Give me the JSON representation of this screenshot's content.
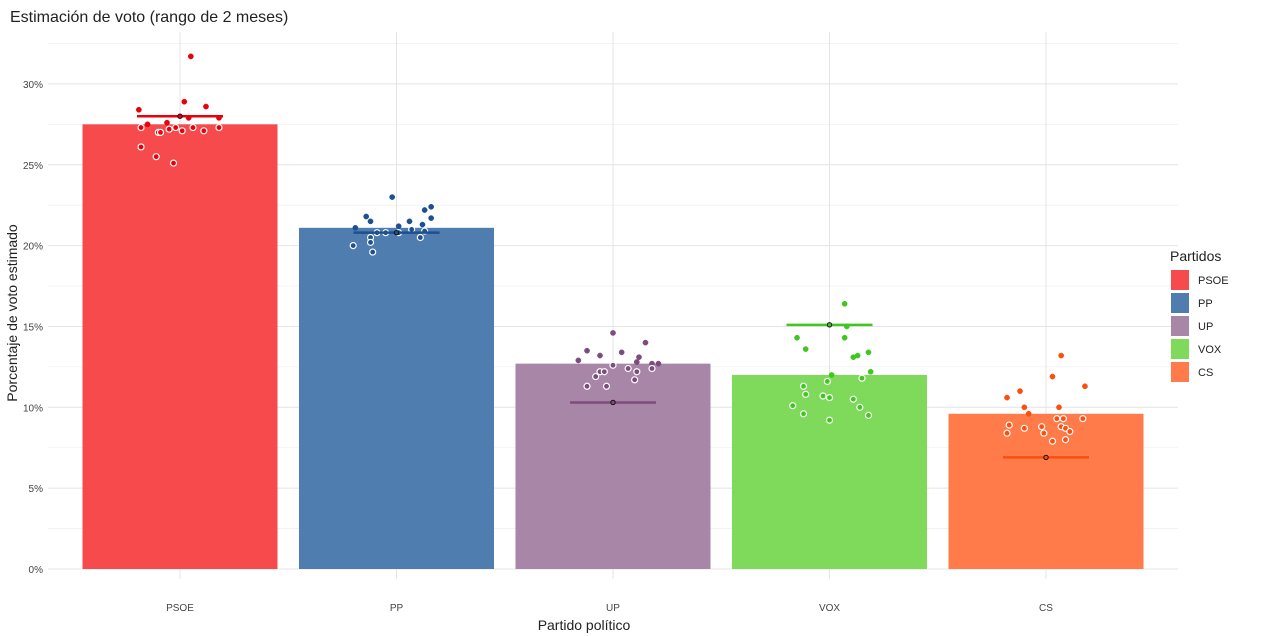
{
  "chart_data": {
    "type": "bar",
    "title": "Estimación de voto (rango de 2 meses)",
    "xlabel": "Partido político",
    "ylabel": "Porcentaje de voto estimado",
    "ylim": [
      0,
      32.5
    ],
    "yticks": [
      0,
      5,
      10,
      15,
      20,
      25,
      30
    ],
    "ytick_labels": [
      "0%",
      "5%",
      "10%",
      "15%",
      "20%",
      "25%",
      "30%"
    ],
    "grid": true,
    "legend": {
      "title": "Partidos",
      "placement": "right"
    },
    "categories": [
      "PSOE",
      "PP",
      "UP",
      "VOX",
      "CS"
    ],
    "values": [
      27.5,
      21.1,
      12.7,
      12.0,
      9.6
    ],
    "reference_line": [
      28.0,
      20.8,
      10.3,
      15.1,
      6.9
    ],
    "colors": {
      "bar": [
        "#f74a4c",
        "#4f7db0",
        "#a886a8",
        "#7fd95a",
        "#ff7c4a"
      ],
      "point": [
        "#e8000b",
        "#1d4f91",
        "#7d4c7b",
        "#3fc71f",
        "#fa4f0e"
      ]
    },
    "points": [
      [
        [
          0.05,
          31.7
        ],
        [
          -0.19,
          28.4
        ],
        [
          0.02,
          28.9
        ],
        [
          0.12,
          28.6
        ],
        [
          0.04,
          27.9
        ],
        [
          0.18,
          27.9
        ],
        [
          -0.18,
          27.3
        ],
        [
          -0.15,
          27.5
        ],
        [
          -0.06,
          27.6
        ],
        [
          -0.1,
          27.0
        ],
        [
          -0.09,
          27.0
        ],
        [
          -0.02,
          27.3
        ],
        [
          0.01,
          27.1
        ],
        [
          -0.05,
          27.2
        ],
        [
          0.06,
          27.3
        ],
        [
          0.11,
          27.1
        ],
        [
          0.18,
          27.3
        ],
        [
          -0.18,
          26.1
        ],
        [
          -0.11,
          25.5
        ],
        [
          -0.03,
          25.1
        ]
      ],
      [
        [
          -0.02,
          23.0
        ],
        [
          -0.14,
          21.8
        ],
        [
          0.16,
          22.4
        ],
        [
          0.13,
          22.2
        ],
        [
          -0.12,
          21.5
        ],
        [
          0.16,
          21.7
        ],
        [
          0.06,
          21.5
        ],
        [
          -0.19,
          21.1
        ],
        [
          0.01,
          21.2
        ],
        [
          0.12,
          21.3
        ],
        [
          -0.09,
          20.8
        ],
        [
          -0.05,
          20.8
        ],
        [
          0.07,
          21.0
        ],
        [
          0.13,
          20.9
        ],
        [
          -0.12,
          20.5
        ],
        [
          0.11,
          20.5
        ],
        [
          -0.2,
          20.0
        ],
        [
          -0.12,
          20.2
        ],
        [
          -0.11,
          19.6
        ],
        [
          0.01,
          20.8
        ]
      ],
      [
        [
          0.0,
          14.6
        ],
        [
          0.15,
          14.0
        ],
        [
          -0.12,
          13.5
        ],
        [
          -0.06,
          13.2
        ],
        [
          0.04,
          13.4
        ],
        [
          0.12,
          13.1
        ],
        [
          -0.16,
          12.9
        ],
        [
          0.11,
          12.8
        ],
        [
          0.18,
          12.7
        ],
        [
          0.21,
          12.7
        ],
        [
          0.0,
          12.6
        ],
        [
          0.07,
          12.4
        ],
        [
          0.18,
          12.4
        ],
        [
          -0.06,
          12.2
        ],
        [
          -0.04,
          12.2
        ],
        [
          -0.08,
          11.9
        ],
        [
          0.11,
          12.2
        ],
        [
          0.1,
          11.7
        ],
        [
          -0.12,
          11.3
        ],
        [
          -0.03,
          11.3
        ]
      ],
      [
        [
          0.07,
          16.4
        ],
        [
          0.08,
          15.0
        ],
        [
          -0.15,
          14.3
        ],
        [
          0.07,
          14.3
        ],
        [
          -0.11,
          13.6
        ],
        [
          0.18,
          13.4
        ],
        [
          0.13,
          13.2
        ],
        [
          0.11,
          13.1
        ],
        [
          0.19,
          12.2
        ],
        [
          0.01,
          12.0
        ],
        [
          0.15,
          11.8
        ],
        [
          -0.01,
          11.6
        ],
        [
          -0.12,
          11.3
        ],
        [
          -0.11,
          10.8
        ],
        [
          -0.03,
          10.7
        ],
        [
          0.0,
          10.6
        ],
        [
          0.11,
          10.5
        ],
        [
          -0.17,
          10.1
        ],
        [
          0.14,
          10.0
        ],
        [
          -0.12,
          9.6
        ],
        [
          0.0,
          9.2
        ],
        [
          0.18,
          9.5
        ]
      ],
      [
        [
          0.07,
          13.2
        ],
        [
          0.18,
          11.3
        ],
        [
          0.03,
          11.9
        ],
        [
          -0.12,
          11.0
        ],
        [
          -0.18,
          10.6
        ],
        [
          0.06,
          10.0
        ],
        [
          -0.1,
          10.0
        ],
        [
          -0.08,
          9.6
        ],
        [
          0.17,
          9.3
        ],
        [
          0.05,
          9.3
        ],
        [
          0.08,
          9.3
        ],
        [
          -0.17,
          8.9
        ],
        [
          -0.02,
          8.8
        ],
        [
          0.07,
          8.8
        ],
        [
          0.09,
          8.7
        ],
        [
          0.11,
          8.5
        ],
        [
          -0.1,
          8.7
        ],
        [
          -0.18,
          8.4
        ],
        [
          -0.01,
          8.4
        ],
        [
          0.09,
          8.0
        ],
        [
          0.03,
          7.9
        ]
      ]
    ]
  }
}
